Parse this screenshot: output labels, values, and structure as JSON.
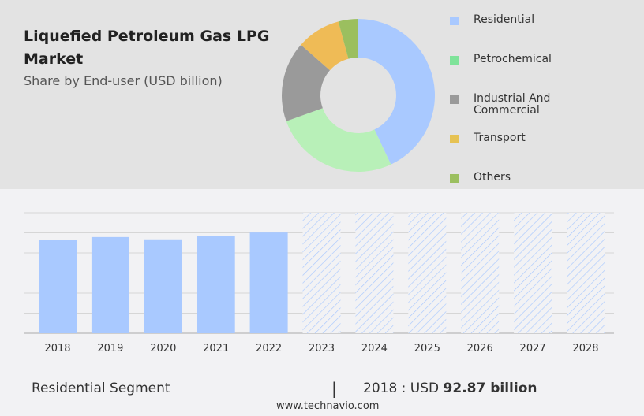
{
  "header": {
    "title": "Liquefied Petroleum Gas LPG Market",
    "subtitle": "Share by End-user (USD billion)"
  },
  "chart_data": [
    {
      "type": "pie",
      "donut": true,
      "legend_placement": "right",
      "slices": [
        {
          "name": "Residential",
          "share_pct": 43,
          "color": "#a9c9ff"
        },
        {
          "name": "Petrochemical",
          "share_pct": 26.5,
          "color": "#b8f0b8"
        },
        {
          "name": "Industrial And Commercial",
          "share_pct": 17,
          "color": "#9a9a9a"
        },
        {
          "name": "Transport",
          "share_pct": 9.3,
          "color": "#efbb56"
        },
        {
          "name": "Others",
          "share_pct": 4.2,
          "color": "#9bbf5f"
        }
      ],
      "legend_swatch_colors": [
        "#a9c9ff",
        "#7fe39a",
        "#9a9a9a",
        "#e6c253",
        "#9bbf5f"
      ]
    },
    {
      "type": "bar",
      "categories": [
        "2018",
        "2019",
        "2020",
        "2021",
        "2022",
        "2023",
        "2024",
        "2025",
        "2026",
        "2027",
        "2028"
      ],
      "values": [
        92.87,
        95.8,
        93.5,
        96.6,
        100.3,
        null,
        null,
        null,
        null,
        null,
        null
      ],
      "forecast_categories": [
        "2023",
        "2024",
        "2025",
        "2026",
        "2027",
        "2028"
      ],
      "forecast_style": "hatched",
      "ylim": [
        0,
        120
      ],
      "grid": true,
      "y_tick_labels_shown": false,
      "color": "#a9c9ff",
      "hatch_color": "#a9c9ff"
    }
  ],
  "footer": {
    "segment": "Residential Segment",
    "separator": "|",
    "year_prefix": "2018 : USD ",
    "value": "92.87 billion",
    "site": "www.technavio.com"
  }
}
